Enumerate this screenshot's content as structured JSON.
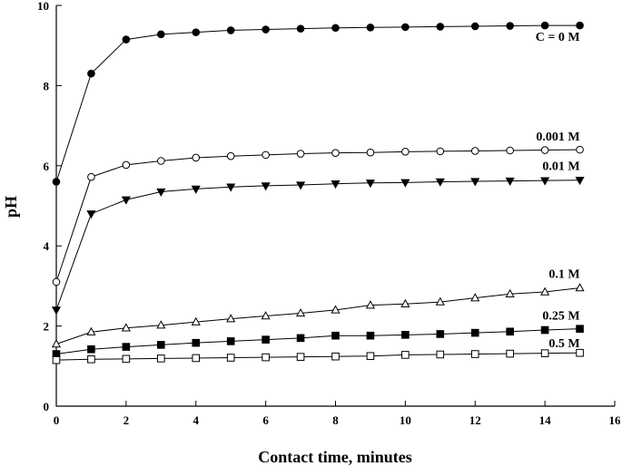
{
  "chart_data": {
    "type": "line",
    "xlabel": "Contact time, minutes",
    "ylabel": "pH",
    "xlim": [
      0,
      16
    ],
    "ylim": [
      0,
      10
    ],
    "x_ticks": [
      0,
      2,
      4,
      6,
      8,
      10,
      12,
      14,
      16
    ],
    "y_ticks": [
      0,
      2,
      4,
      6,
      8,
      10
    ],
    "grid": false,
    "x": [
      0,
      1,
      2,
      3,
      4,
      5,
      6,
      7,
      8,
      9,
      10,
      11,
      12,
      13,
      14,
      15
    ],
    "series": [
      {
        "name": "C = 0 M",
        "marker": "filled-circle",
        "values": [
          5.6,
          8.3,
          9.15,
          9.28,
          9.33,
          9.38,
          9.4,
          9.42,
          9.44,
          9.45,
          9.46,
          9.47,
          9.48,
          9.49,
          9.5,
          9.5
        ]
      },
      {
        "name": "0.001 M",
        "marker": "open-circle",
        "values": [
          3.1,
          5.72,
          6.02,
          6.12,
          6.2,
          6.24,
          6.27,
          6.3,
          6.32,
          6.33,
          6.35,
          6.36,
          6.37,
          6.38,
          6.39,
          6.4
        ]
      },
      {
        "name": "0.01 M",
        "marker": "filled-triangle-down",
        "values": [
          2.4,
          4.8,
          5.15,
          5.35,
          5.42,
          5.47,
          5.5,
          5.52,
          5.55,
          5.57,
          5.58,
          5.6,
          5.61,
          5.62,
          5.63,
          5.64
        ]
      },
      {
        "name": "0.1 M",
        "marker": "open-triangle-up",
        "values": [
          1.55,
          1.85,
          1.95,
          2.02,
          2.1,
          2.18,
          2.25,
          2.32,
          2.4,
          2.52,
          2.55,
          2.6,
          2.7,
          2.8,
          2.85,
          2.95
        ]
      },
      {
        "name": "0.25 M",
        "marker": "filled-square",
        "values": [
          1.3,
          1.42,
          1.48,
          1.53,
          1.58,
          1.62,
          1.66,
          1.7,
          1.76,
          1.76,
          1.78,
          1.8,
          1.83,
          1.86,
          1.9,
          1.93
        ]
      },
      {
        "name": "0.5 M",
        "marker": "open-square",
        "values": [
          1.15,
          1.17,
          1.18,
          1.19,
          1.2,
          1.21,
          1.22,
          1.23,
          1.24,
          1.25,
          1.28,
          1.29,
          1.3,
          1.31,
          1.32,
          1.33
        ]
      }
    ]
  }
}
